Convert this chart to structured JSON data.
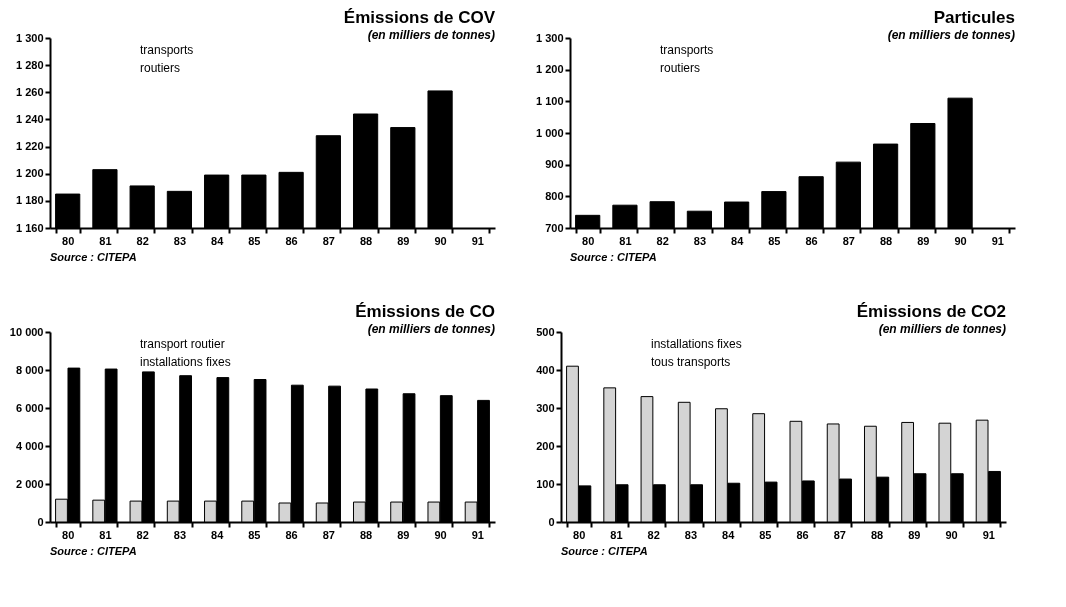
{
  "chart_data": [
    {
      "type": "bar",
      "title": "Émissions de COV",
      "subtitle": "(en milliers de tonnes)",
      "annotations": [
        "Source : CITEPA",
        "transports",
        "routiers"
      ],
      "categories": [
        "80",
        "81",
        "82",
        "83",
        "84",
        "85",
        "86",
        "87",
        "88",
        "89",
        "90",
        "91"
      ],
      "series": [
        {
          "color": "#000000",
          "values": [
            1185,
            1203,
            1191,
            1187,
            1199,
            1199,
            1201,
            1228,
            1244,
            1234,
            1261,
            null
          ]
        }
      ],
      "ylim": [
        1160,
        1300
      ],
      "yticks": [
        {
          "value": 1160,
          "label": "1 160"
        },
        {
          "value": 1180,
          "label": "1 180"
        },
        {
          "value": 1200,
          "label": "1 200"
        },
        {
          "value": 1220,
          "label": "1 220"
        },
        {
          "value": 1240,
          "label": "1 240"
        },
        {
          "value": 1260,
          "label": "1 260"
        },
        {
          "value": 1280,
          "label": "1 280"
        },
        {
          "value": 1300,
          "label": "1 300"
        }
      ],
      "grid": false
    },
    {
      "type": "bar",
      "title": "Particules",
      "subtitle": "(en milliers de tonnes)",
      "annotations": [
        "Source : CITEPA",
        "transports",
        "routiers"
      ],
      "categories": [
        "80",
        "81",
        "82",
        "83",
        "84",
        "85",
        "86",
        "87",
        "88",
        "89",
        "90",
        "91"
      ],
      "series": [
        {
          "color": "#000000",
          "values": [
            740,
            772,
            783,
            753,
            782,
            815,
            862,
            908,
            965,
            1030,
            1110,
            null
          ]
        }
      ],
      "ylim": [
        700,
        1300
      ],
      "yticks": [
        700,
        800,
        900,
        {
          "value": 1000,
          "label": "1 000"
        },
        {
          "value": 1100,
          "label": "1 100"
        },
        {
          "value": 1200,
          "label": "1 200"
        },
        {
          "value": 1300,
          "label": "1 300"
        }
      ],
      "grid": false
    },
    {
      "type": "bar",
      "title": "Émissions de CO",
      "subtitle": "(en milliers de tonnes)",
      "annotations": [
        "Source : CITEPA",
        "transport routier",
        "installations fixes"
      ],
      "categories": [
        "80",
        "81",
        "82",
        "83",
        "84",
        "85",
        "86",
        "87",
        "88",
        "89",
        "90",
        "91"
      ],
      "series": [
        {
          "color": "#d4d4d4",
          "values": [
            1200,
            1150,
            1100,
            1100,
            1100,
            1100,
            1000,
            1000,
            1050,
            1050,
            1050,
            1050
          ]
        },
        {
          "color": "#000000",
          "values": [
            8100,
            8050,
            7900,
            7700,
            7600,
            7500,
            7200,
            7150,
            7000,
            6750,
            6650,
            6400
          ]
        }
      ],
      "ylim": [
        0,
        10000
      ],
      "yticks": [
        0,
        {
          "value": 2000,
          "label": "2 000"
        },
        {
          "value": 4000,
          "label": "4 000"
        },
        {
          "value": 6000,
          "label": "6 000"
        },
        {
          "value": 8000,
          "label": "8 000"
        },
        {
          "value": 10000,
          "label": "10 000"
        }
      ],
      "grid": false
    },
    {
      "type": "bar",
      "title": "Émissions de CO2",
      "subtitle": "(en milliers de tonnes)",
      "annotations": [
        "Source : CITEPA",
        "installations fixes",
        "tous transports"
      ],
      "categories": [
        "80",
        "81",
        "82",
        "83",
        "84",
        "85",
        "86",
        "87",
        "88",
        "89",
        "90",
        "91"
      ],
      "series": [
        {
          "color": "#d4d4d4",
          "values": [
            410,
            353,
            330,
            315,
            298,
            285,
            265,
            258,
            252,
            262,
            260,
            268
          ]
        },
        {
          "color": "#000000",
          "values": [
            95,
            98,
            98,
            98,
            102,
            105,
            108,
            113,
            118,
            127,
            127,
            133
          ]
        }
      ],
      "ylim": [
        0,
        500
      ],
      "yticks": [
        0,
        100,
        200,
        300,
        400,
        500
      ],
      "grid": false
    }
  ]
}
